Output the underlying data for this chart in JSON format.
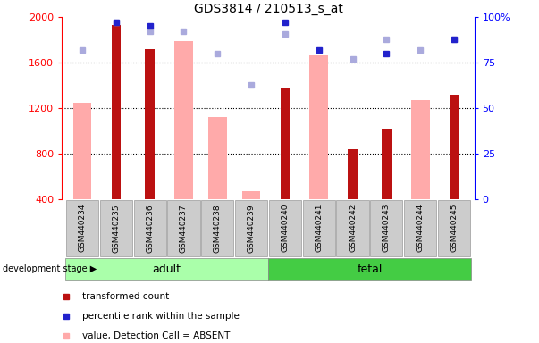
{
  "title": "GDS3814 / 210513_s_at",
  "categories": [
    "GSM440234",
    "GSM440235",
    "GSM440236",
    "GSM440237",
    "GSM440238",
    "GSM440239",
    "GSM440240",
    "GSM440241",
    "GSM440242",
    "GSM440243",
    "GSM440244",
    "GSM440245"
  ],
  "transformed_count": [
    null,
    1930,
    1720,
    null,
    null,
    null,
    1380,
    null,
    840,
    1020,
    null,
    1320
  ],
  "percentile_rank": [
    null,
    97,
    95,
    null,
    null,
    null,
    97,
    82,
    null,
    80,
    null,
    88
  ],
  "absent_value": [
    1250,
    null,
    null,
    1790,
    1120,
    470,
    null,
    1660,
    null,
    null,
    1270,
    null
  ],
  "absent_rank": [
    82,
    97,
    92,
    92,
    80,
    63,
    91,
    null,
    77,
    88,
    82,
    88
  ],
  "ylim_left": [
    400,
    2000
  ],
  "ylim_right": [
    0,
    100
  ],
  "yticks_left": [
    400,
    800,
    1200,
    1600,
    2000
  ],
  "yticks_right": [
    0,
    25,
    50,
    75,
    100
  ],
  "bar_color_red": "#bb1111",
  "bar_color_pink": "#ffaaaa",
  "dot_color_blue": "#2222cc",
  "dot_color_lightblue": "#aaaadd",
  "group_adult_color": "#aaffaa",
  "group_fetal_color": "#44cc44",
  "adult_indices": [
    0,
    5
  ],
  "fetal_indices": [
    6,
    11
  ]
}
